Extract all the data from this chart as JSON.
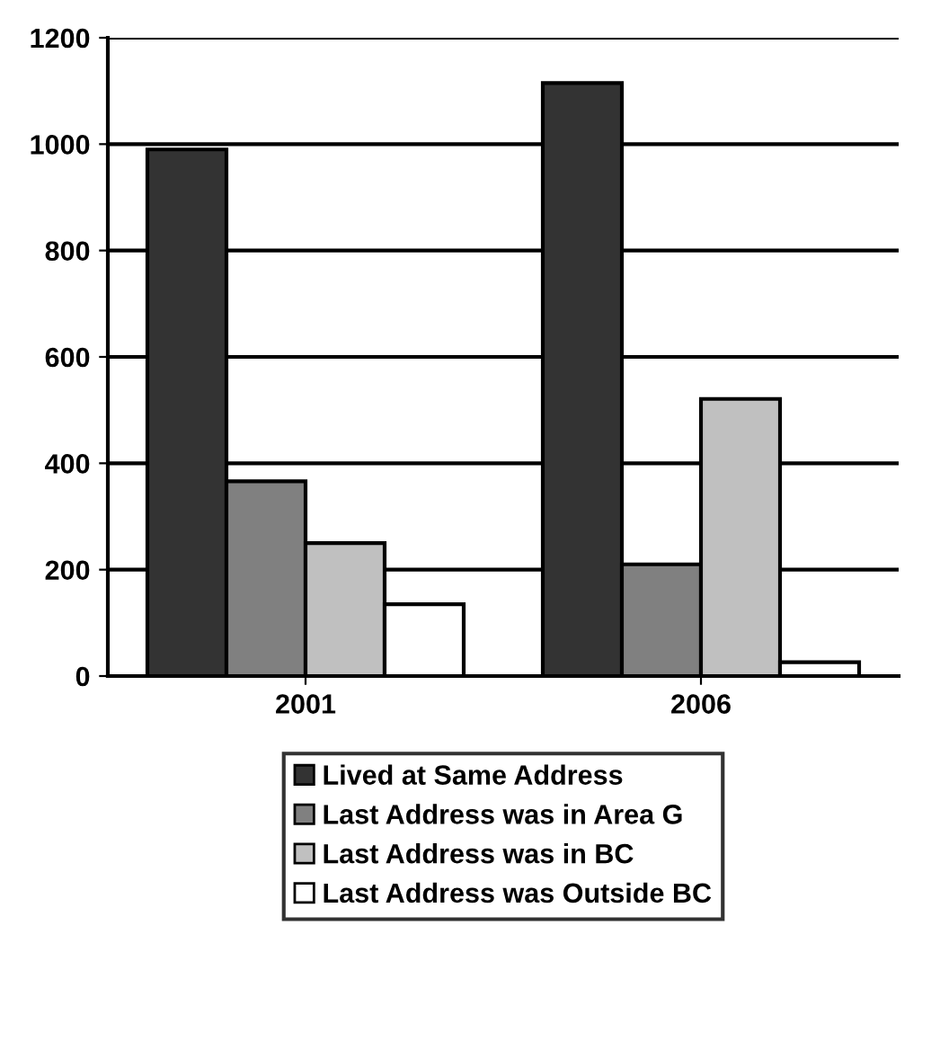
{
  "chart_data": {
    "type": "bar",
    "categories": [
      "2001",
      "2006"
    ],
    "series": [
      {
        "name": "Lived at Same Address",
        "color": "#333333",
        "values": [
          990,
          1115
        ]
      },
      {
        "name": "Last Address was in Area G",
        "color": "#808080",
        "values": [
          366,
          210
        ]
      },
      {
        "name": "Last Address was in BC",
        "color": "#c0c0c0",
        "values": [
          250,
          521
        ]
      },
      {
        "name": "Last Address was Outside BC",
        "color": "#ffffff",
        "values": [
          135,
          26
        ]
      }
    ],
    "ylim": [
      0,
      1200
    ],
    "yticks": [
      0,
      200,
      400,
      600,
      800,
      1000,
      1200
    ],
    "grid": "y",
    "legend": "bottom"
  }
}
